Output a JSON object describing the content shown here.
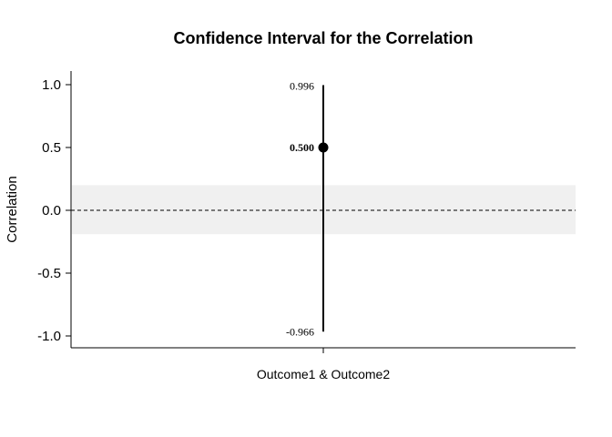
{
  "chart_data": {
    "type": "scatter",
    "title": "Confidence Interval for the Correlation",
    "xlabel": "",
    "ylabel": "Correlation",
    "categories": [
      "Outcome1 & Outcome2"
    ],
    "estimate": [
      0.5
    ],
    "lower": [
      -0.966
    ],
    "upper": [
      0.996
    ],
    "estimate_labels": [
      "0.500"
    ],
    "lower_labels": [
      "-0.966"
    ],
    "upper_labels": [
      "0.996"
    ],
    "yticks": [
      1.0,
      0.5,
      0.0,
      -0.5,
      -1.0
    ],
    "ytick_labels": [
      "1.0",
      "0.5",
      "0.0",
      "-0.5",
      "-1.0"
    ],
    "ylim": [
      -1.1,
      1.1
    ],
    "reference_line": 0,
    "shaded_band": [
      -0.19,
      0.2
    ],
    "band_color": "#f0f0f0",
    "grid": false,
    "legend": "none"
  }
}
